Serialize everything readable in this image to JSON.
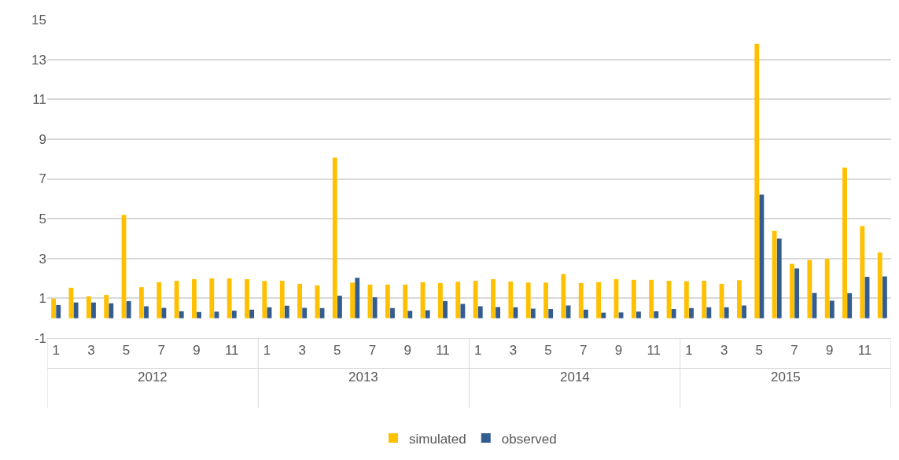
{
  "chart_data": {
    "type": "bar",
    "categories": [
      "1",
      null,
      "3",
      null,
      "5",
      null,
      "7",
      null,
      "9",
      null,
      "11",
      null,
      "1",
      null,
      "3",
      null,
      "5",
      null,
      "7",
      null,
      "9",
      null,
      "11",
      null,
      "1",
      null,
      "3",
      null,
      "5",
      null,
      "7",
      null,
      "9",
      null,
      "11",
      null,
      "1",
      null,
      "3",
      null,
      "5",
      null,
      "7",
      null,
      "9",
      null,
      "11",
      null
    ],
    "series": [
      {
        "name": "simulated",
        "color": "#ffc000",
        "values": [
          0.98,
          1.53,
          1.1,
          1.17,
          5.19,
          1.56,
          1.81,
          1.88,
          1.96,
          2.0,
          2.0,
          1.96,
          1.87,
          1.88,
          1.73,
          1.65,
          8.07,
          1.79,
          1.69,
          1.69,
          1.69,
          1.81,
          1.77,
          1.83,
          1.88,
          1.96,
          1.84,
          1.79,
          1.79,
          2.22,
          1.77,
          1.81,
          1.96,
          1.93,
          1.93,
          1.88,
          1.86,
          1.88,
          1.73,
          1.91,
          13.79,
          4.39,
          2.73,
          2.93,
          2.98,
          7.56,
          4.63,
          3.3
        ]
      },
      {
        "name": "observed",
        "color": "#335c8f",
        "values": [
          0.66,
          0.79,
          0.79,
          0.75,
          0.86,
          0.6,
          0.52,
          0.35,
          0.31,
          0.33,
          0.38,
          0.43,
          0.55,
          0.63,
          0.52,
          0.51,
          1.13,
          2.03,
          1.05,
          0.51,
          0.37,
          0.4,
          0.86,
          0.72,
          0.6,
          0.56,
          0.55,
          0.48,
          0.46,
          0.64,
          0.43,
          0.28,
          0.29,
          0.33,
          0.35,
          0.46,
          0.51,
          0.55,
          0.55,
          0.64,
          6.21,
          4.0,
          2.5,
          1.27,
          0.88,
          1.26,
          2.08,
          2.1
        ]
      }
    ],
    "annotations": [
      "2012",
      "2013",
      "2014",
      "2015"
    ],
    "ylim": [
      -1,
      15
    ],
    "yticks": [
      -1,
      1,
      3,
      5,
      7,
      9,
      11,
      13,
      15
    ],
    "grid": "y",
    "legend": "bottom"
  }
}
